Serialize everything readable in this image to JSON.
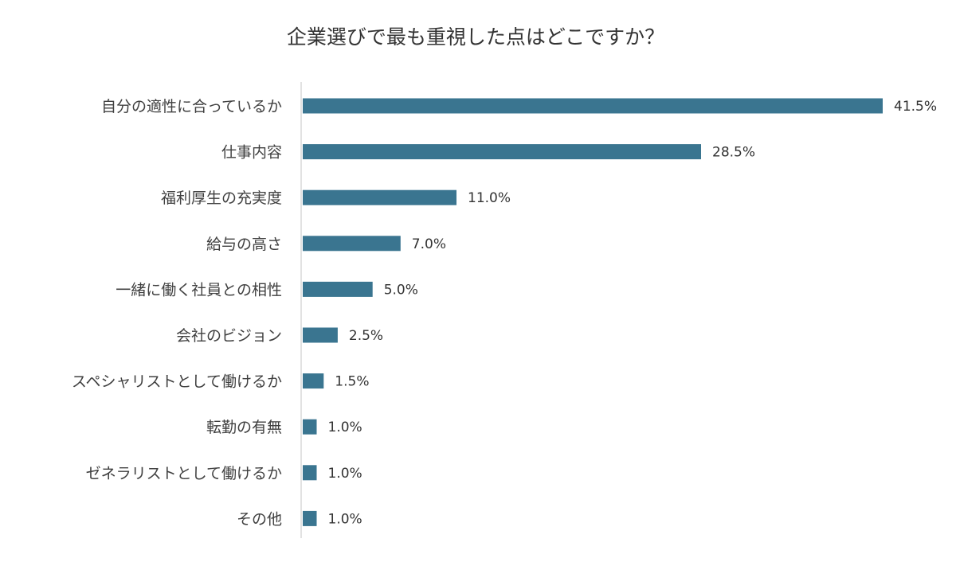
{
  "chart_data": {
    "type": "bar",
    "orientation": "horizontal",
    "title": "企業選びで最も重視した点はどこですか？",
    "xlabel": "",
    "ylabel": "",
    "xlim": [
      0,
      41.5
    ],
    "grid": false,
    "legend": "none",
    "categories": [
      "自分の適性に合っているか",
      "仕事内容",
      "福利厚生の充実度",
      "給与の高さ",
      "一緒に働く社員との相性",
      "会社のビジョン",
      "スペシャリストとして働けるか",
      "転勤の有無",
      "ゼネラリストとして働けるか",
      "その他"
    ],
    "values": [
      41.5,
      28.5,
      11.0,
      7.0,
      5.0,
      2.5,
      1.5,
      1.0,
      1.0,
      1.0
    ],
    "value_labels": [
      "41.5%",
      "28.5%",
      "11.0%",
      "7.0%",
      "5.0%",
      "2.5%",
      "1.5%",
      "1.0%",
      "1.0%",
      "1.0%"
    ],
    "colors": {
      "bar": "#3a7590",
      "axis": "#d9d9d9"
    }
  }
}
